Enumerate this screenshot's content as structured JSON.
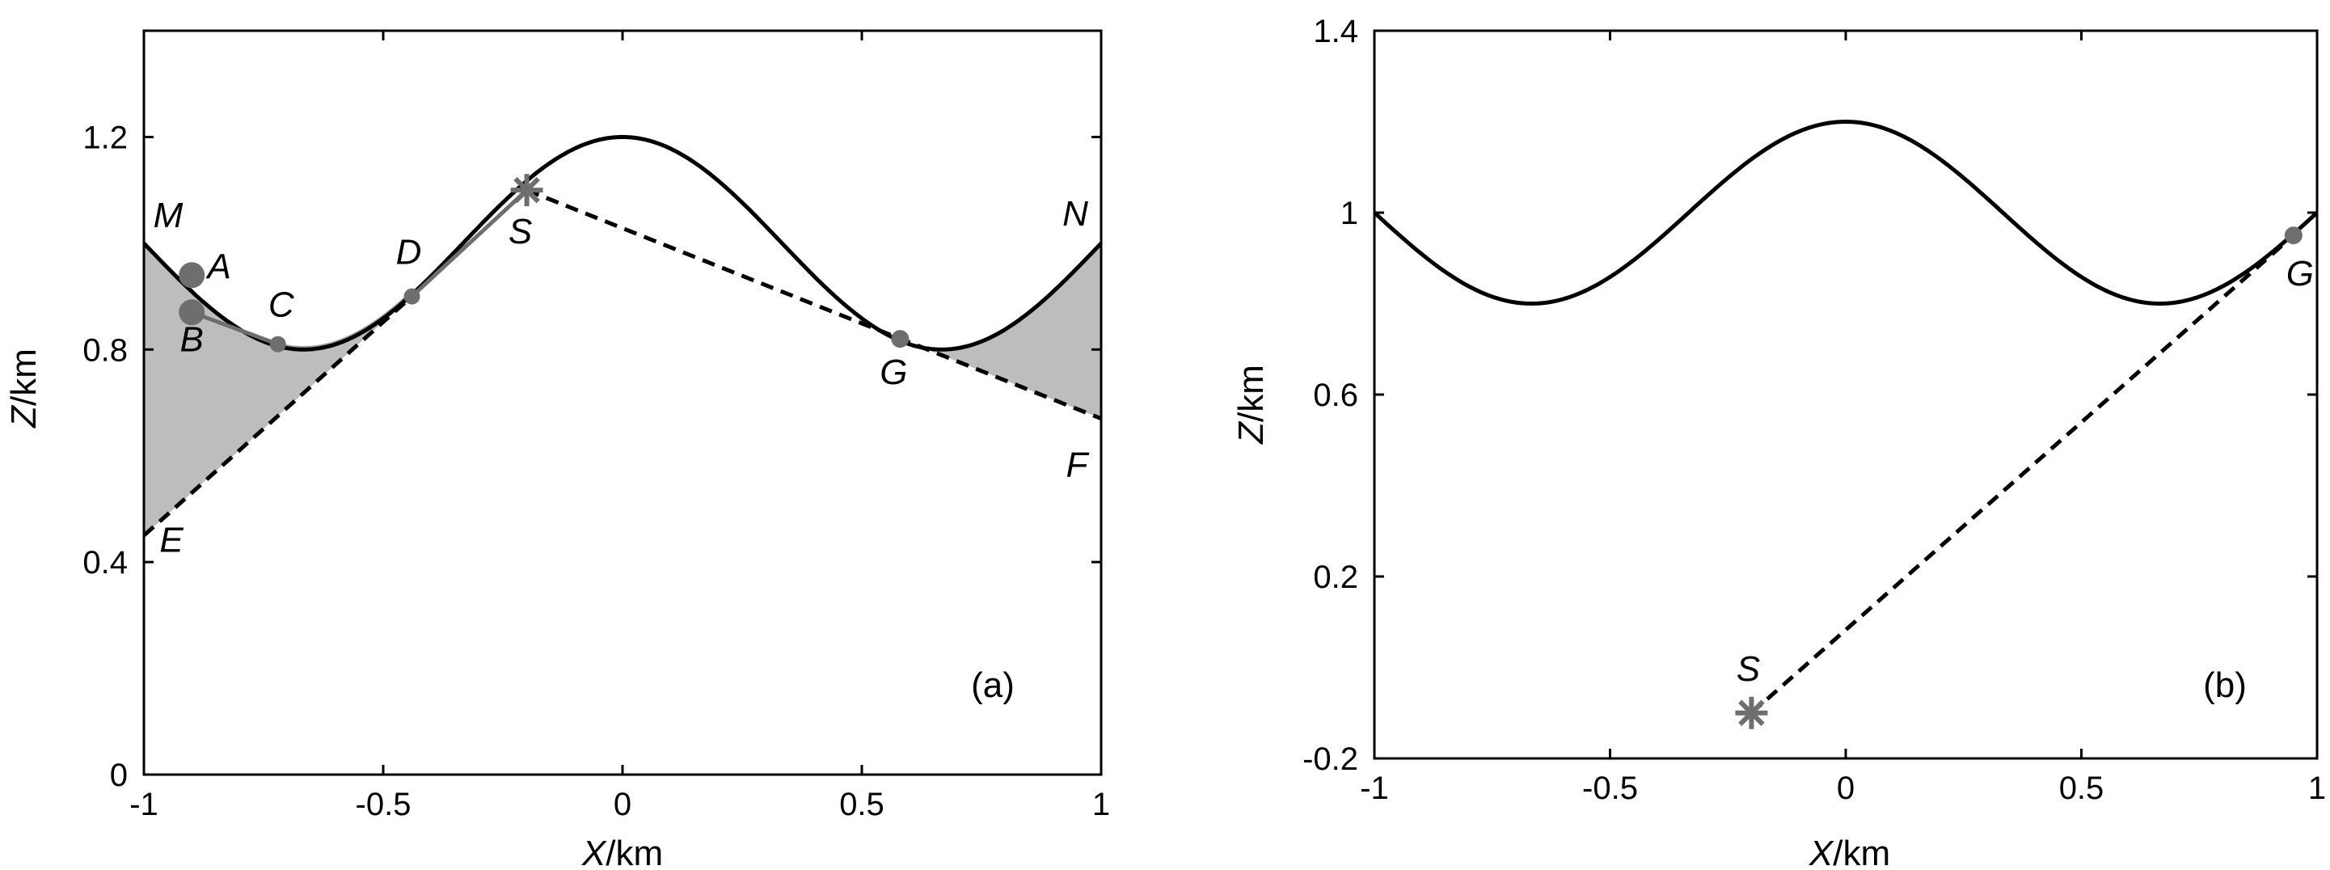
{
  "chart_data": [
    {
      "type": "line",
      "panel_label": "(a)",
      "xlabel_var": "X",
      "xlabel_unit": "/km",
      "ylabel_var": "Z",
      "ylabel_unit": "/km",
      "xlim": [
        -1,
        1
      ],
      "ylim": [
        0,
        1.4
      ],
      "xticks": [
        -1,
        -0.5,
        0,
        0.5,
        1
      ],
      "xtick_labels": [
        "-1",
        "-0.5",
        "0",
        "0.5",
        "1"
      ],
      "yticks": [
        0,
        0.4,
        0.8,
        1.2
      ],
      "ytick_labels": [
        "0",
        "0.4",
        "0.8",
        "1.2"
      ],
      "grid": false,
      "colors": {
        "surface": "#000000",
        "points": "#6e6e6e",
        "shade": "#bdbdbd",
        "path": "#a0a0a0"
      },
      "surface": {
        "description": "z = 1 + 0.2*cos(1.5*pi*x)",
        "base": 1.0,
        "amplitude": 0.2,
        "frequency": 1.5
      },
      "source": {
        "label": "S",
        "x": -0.2,
        "y": 1.1
      },
      "receiver": {
        "label": "G",
        "x": 0.58,
        "y": 0.82
      },
      "points": [
        {
          "label": "A",
          "x": -0.9,
          "y": 0.94
        },
        {
          "label": "B",
          "x": -0.9,
          "y": 0.87
        },
        {
          "label": "C",
          "x": -0.72,
          "y": 0.81
        },
        {
          "label": "D",
          "x": -0.44,
          "y": 0.9
        }
      ],
      "edge_labels": [
        {
          "label": "M",
          "x": -1,
          "y": 1.0
        },
        {
          "label": "N",
          "x": 1,
          "y": 1.0
        },
        {
          "label": "E",
          "x": -1,
          "y": 0.45
        },
        {
          "label": "F",
          "x": 1,
          "y": 0.67
        }
      ],
      "dashed_lines": [
        {
          "from": [
            -1,
            0.45
          ],
          "to": [
            -0.44,
            0.9
          ]
        },
        {
          "from": [
            -0.2,
            1.1
          ],
          "to": [
            1,
            0.67
          ]
        }
      ]
    },
    {
      "type": "line",
      "panel_label": "(b)",
      "xlabel_var": "X",
      "xlabel_unit": "/km",
      "ylabel_var": "Z",
      "ylabel_unit": "/km",
      "xlim": [
        -1,
        1
      ],
      "ylim": [
        -0.2,
        1.4
      ],
      "xticks": [
        -1,
        -0.5,
        0,
        0.5,
        1
      ],
      "xtick_labels": [
        "-1",
        "-0.5",
        "0",
        "0.5",
        "1"
      ],
      "yticks": [
        -0.2,
        0.2,
        0.6,
        1,
        1.4
      ],
      "ytick_labels": [
        "-0.2",
        "0.2",
        "0.6",
        "1",
        "1.4"
      ],
      "grid": false,
      "colors": {
        "surface": "#000000",
        "points": "#6e6e6e"
      },
      "surface": {
        "description": "z = 1 + 0.2*cos(1.5*pi*x)",
        "base": 1.0,
        "amplitude": 0.2,
        "frequency": 1.5
      },
      "source": {
        "label": "S",
        "x": -0.2,
        "y": -0.1
      },
      "receiver": {
        "label": "G",
        "x": 0.95,
        "y": 0.95
      },
      "dashed_lines": [
        {
          "from": [
            -0.2,
            -0.1
          ],
          "to": [
            0.95,
            0.95
          ]
        }
      ]
    }
  ]
}
